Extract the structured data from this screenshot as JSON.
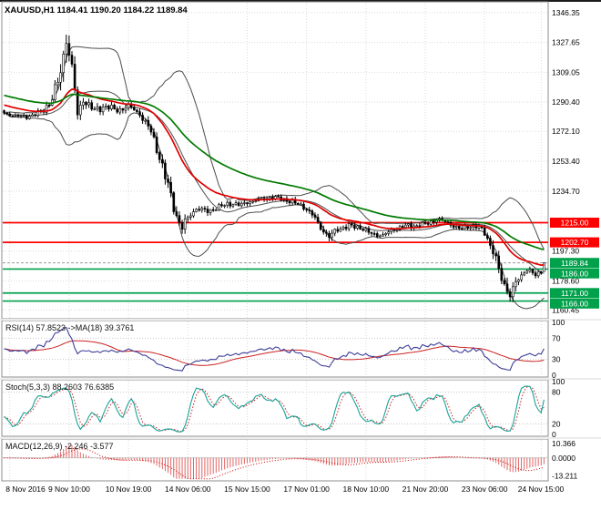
{
  "main": {
    "title": "XAUUSD,H1 1184.41 1190.20 1184.22 1189.84",
    "y_ticks": [
      "1346.35",
      "1327.65",
      "1309.05",
      "1290.40",
      "1272.10",
      "1253.40",
      "1234.70",
      "1197.30",
      "1178.60",
      "1160.45"
    ],
    "scale": {
      "top": 1352.5,
      "bottom": 1155.5
    },
    "price_lines": [
      {
        "value": 1215.0,
        "label": "1215.00",
        "kind": "resistance"
      },
      {
        "value": 1202.7,
        "label": "1202.70",
        "kind": "resistance"
      },
      {
        "value": 1186.0,
        "label": "1186.00",
        "kind": "support"
      },
      {
        "value": 1171.0,
        "label": "1171.00",
        "kind": "support"
      },
      {
        "value": 1166.0,
        "label": "1166.00",
        "kind": "support"
      }
    ],
    "current_price": {
      "value": 1189.84,
      "label": "1189.84"
    }
  },
  "time_axis": {
    "labels": [
      "8 Nov 2016",
      "9 Nov 10:00",
      "10 Nov 19:00",
      "14 Nov 06:00",
      "15 Nov 15:00",
      "17 Nov 01:00",
      "18 Nov 10:00",
      "21 Nov 20:00",
      "23 Nov 06:00",
      "24 Nov 15:00"
    ]
  },
  "rsi": {
    "label": "RSI(14) 57.8523 ->MA(18) 39.3761",
    "y_ticks": [
      "100",
      "70",
      "30",
      "0"
    ],
    "levels": [
      70,
      30
    ]
  },
  "stoch": {
    "label": "Stoch(5,3,3) 88.2603 76.6385",
    "y_ticks": [
      "100",
      "80",
      "20",
      "0"
    ],
    "levels": [
      80,
      20
    ]
  },
  "macd": {
    "label": "MACD(12,26,9) -2.246 -3.577",
    "y_ticks": [
      "10.366",
      "0.0000",
      "-13.211"
    ],
    "range": {
      "top": 12.5,
      "bottom": -15.5
    }
  },
  "colors": {
    "grid": "#d9d9d9",
    "candle": "#000000",
    "candle_up_fill": "#ffffff",
    "bollinger": "#4d4d4d",
    "ma_fast": "#e00000",
    "ma_slow": "#007a00",
    "resistance": "#ff0000",
    "support": "#00a14b",
    "current": "#00a14b",
    "rsi_line": "#3d3d99",
    "rsi_ma": "#cc2222",
    "stoch_line": "#17a398",
    "stoch_signal": "#cc2222",
    "macd_hist": "#e06666",
    "macd_signal": "#cc0000",
    "axis_text": "#000000",
    "level_line": "#c8c8c8",
    "bid_line": "#9a9a9a"
  },
  "chart_data": [
    {
      "type": "candlestick",
      "title": "XAUUSD,H1",
      "bars": 192,
      "ylim": [
        1160.45,
        1346.35
      ],
      "x_labels": [
        "8 Nov 2016",
        "9 Nov 10:00",
        "10 Nov 19:00",
        "14 Nov 06:00",
        "15 Nov 15:00",
        "17 Nov 01:00",
        "18 Nov 10:00",
        "21 Nov 20:00",
        "23 Nov 06:00",
        "24 Nov 15:00"
      ],
      "label_bar_index": [
        2,
        23,
        44,
        65,
        86,
        107,
        128,
        149,
        170,
        190
      ],
      "ohlc_last": {
        "open": 1184.41,
        "high": 1190.2,
        "low": 1184.22,
        "close": 1189.84
      },
      "close_keypoints": [
        [
          0,
          1283,
          3
        ],
        [
          8,
          1281,
          3
        ],
        [
          14,
          1285,
          4
        ],
        [
          17,
          1293,
          8
        ],
        [
          20,
          1308,
          13
        ],
        [
          22,
          1331,
          15
        ],
        [
          24,
          1312,
          14
        ],
        [
          26,
          1282,
          10
        ],
        [
          28,
          1292,
          7
        ],
        [
          32,
          1285,
          6
        ],
        [
          36,
          1288,
          5
        ],
        [
          40,
          1285,
          5
        ],
        [
          44,
          1288,
          5
        ],
        [
          48,
          1283,
          5
        ],
        [
          52,
          1272,
          7
        ],
        [
          55,
          1256,
          8
        ],
        [
          58,
          1238,
          9
        ],
        [
          61,
          1219,
          9
        ],
        [
          63,
          1212,
          8
        ],
        [
          65,
          1218,
          6
        ],
        [
          68,
          1224,
          5
        ],
        [
          72,
          1222,
          5
        ],
        [
          76,
          1225,
          4
        ],
        [
          80,
          1227,
          4
        ],
        [
          84,
          1226,
          4
        ],
        [
          86,
          1228,
          4
        ],
        [
          90,
          1229,
          4
        ],
        [
          94,
          1231,
          4
        ],
        [
          98,
          1230,
          4
        ],
        [
          102,
          1228,
          4
        ],
        [
          106,
          1225,
          4
        ],
        [
          109,
          1220,
          5
        ],
        [
          112,
          1212,
          6
        ],
        [
          115,
          1206,
          6
        ],
        [
          118,
          1211,
          5
        ],
        [
          122,
          1213,
          4
        ],
        [
          126,
          1212,
          4
        ],
        [
          130,
          1208,
          4
        ],
        [
          134,
          1207,
          4
        ],
        [
          138,
          1211,
          4
        ],
        [
          142,
          1213,
          4
        ],
        [
          146,
          1213,
          4
        ],
        [
          149,
          1214,
          4
        ],
        [
          153,
          1217,
          4
        ],
        [
          157,
          1215,
          4
        ],
        [
          161,
          1211,
          4
        ],
        [
          165,
          1213,
          4
        ],
        [
          168,
          1212,
          4
        ],
        [
          170,
          1209,
          5
        ],
        [
          173,
          1197,
          8
        ],
        [
          176,
          1180,
          9
        ],
        [
          179,
          1170,
          10
        ],
        [
          182,
          1180,
          6
        ],
        [
          185,
          1186,
          4
        ],
        [
          188,
          1182,
          4
        ],
        [
          190,
          1184.4,
          3
        ],
        [
          191,
          1189.84,
          2
        ]
      ],
      "overlays": [
        {
          "name": "bollinger-bands",
          "period": 20,
          "deviation": 2
        },
        {
          "name": "ma-fast-red",
          "period": 24
        },
        {
          "name": "ma-slow-green",
          "period": 55
        }
      ],
      "hlines": [
        1215.0,
        1202.7,
        1186.0,
        1171.0,
        1166.0
      ]
    },
    {
      "type": "line",
      "title": "RSI(14)",
      "value": 57.8523,
      "ma_period": 18,
      "ma_value": 39.3761,
      "ylim": [
        0,
        100
      ],
      "levels": [
        30,
        70
      ]
    },
    {
      "type": "line",
      "title": "Stoch(5,3,3)",
      "value": 88.2603,
      "signal": 76.6385,
      "ylim": [
        0,
        100
      ],
      "levels": [
        20,
        80
      ]
    },
    {
      "type": "bar",
      "title": "MACD(12,26,9)",
      "value": -2.246,
      "signal": -3.577,
      "ylim": [
        -13.211,
        10.366
      ]
    }
  ]
}
